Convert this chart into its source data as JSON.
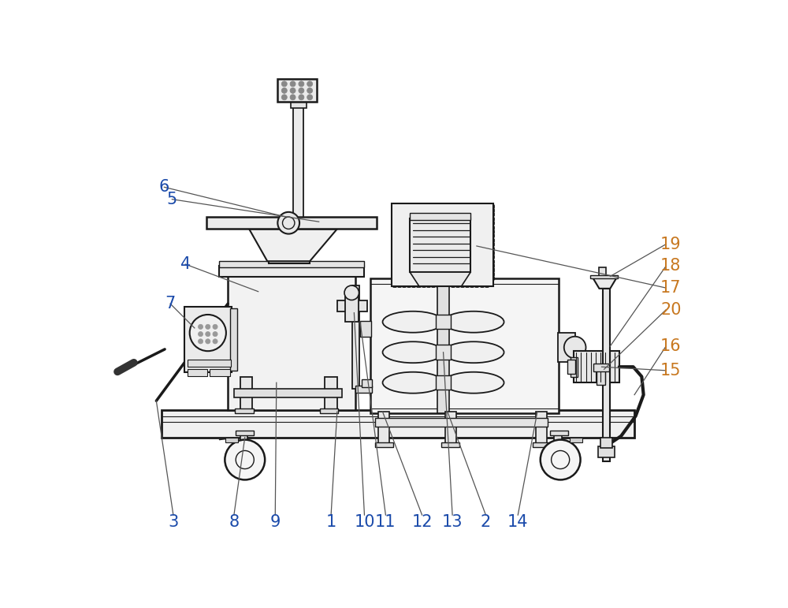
{
  "bg_color": "#ffffff",
  "lc": "#1a1a1a",
  "lo": "#c87820",
  "lb": "#1a4aaa",
  "figsize": [
    10.0,
    7.71
  ],
  "dpi": 100,
  "lw": 1.3
}
